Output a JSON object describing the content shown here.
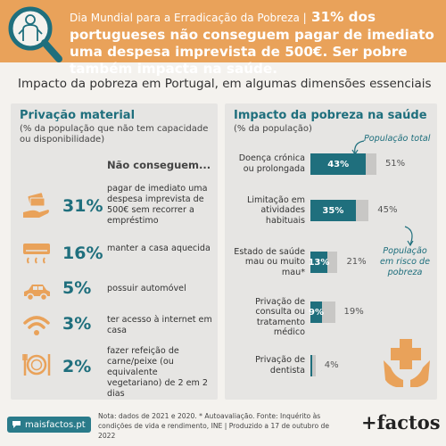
{
  "header": {
    "prefix": "Dia Mundial para a Erradicação da Pobreza |",
    "headline": "31% dos portugueses não conseguem pagar de imediato uma despesa imprevista de 500€. Ser pobre também impacta na saúde."
  },
  "main_title": "Impacto da pobreza em Portugal, em algumas dimensões essenciais",
  "left_panel": {
    "title": "Privação material",
    "subtitle": "(% da população que não tem capacidade ou disponibilidade)",
    "heading": "Não conseguem...",
    "items": [
      {
        "pct": "31%",
        "text": "pagar de imediato uma despesa imprevista de 500€ sem recorrer a empréstimo",
        "icon": "money-hand-icon"
      },
      {
        "pct": "16%",
        "text": "manter a casa aquecida",
        "icon": "air-conditioner-icon"
      },
      {
        "pct": "5%",
        "text": "possuir automóvel",
        "icon": "car-icon"
      },
      {
        "pct": "3%",
        "text": "ter acesso à internet em casa",
        "icon": "wifi-icon"
      },
      {
        "pct": "2%",
        "text": "fazer refeição de carne/peixe (ou equivalente vegetariano) de 2 em 2 dias",
        "icon": "plate-cutlery-icon"
      }
    ]
  },
  "right_panel": {
    "title": "Impacto da pobreza na saúde",
    "subtitle": "(% da população)",
    "annotation_total": "População total",
    "annotation_poor": "População em risco de pobreza"
  },
  "chart_data": {
    "type": "bar",
    "orientation": "horizontal",
    "categories": [
      "Doença crónica ou prolongada",
      "Limitação em atividades habituais",
      "Estado de saúde mau ou muito mau*",
      "Privação de consulta ou tratamento médico",
      "Privação de dentista"
    ],
    "series": [
      {
        "name": "População em risco de pobreza",
        "values": [
          43,
          35,
          13,
          9,
          1
        ],
        "labels": [
          "43%",
          "35%",
          "13%",
          "9%",
          ""
        ],
        "color": "#1f6f7d"
      },
      {
        "name": "População total",
        "values": [
          51,
          45,
          21,
          19,
          4
        ],
        "labels": [
          "51%",
          "45%",
          "21%",
          "19%",
          "4%"
        ],
        "color": "#c8c7c5"
      }
    ]
  },
  "footer": {
    "site": "maisfactos.pt",
    "note": "Nota: dados de 2021 e 2020. * Autoavaliação. Fonte: Inquérito às condições de vida e rendimento, INE | Produzido a 17 de outubro de 2022",
    "brand": "+factos"
  },
  "colors": {
    "accent": "#e9a25a",
    "teal": "#1f6f7d",
    "grey": "#c8c7c5"
  }
}
